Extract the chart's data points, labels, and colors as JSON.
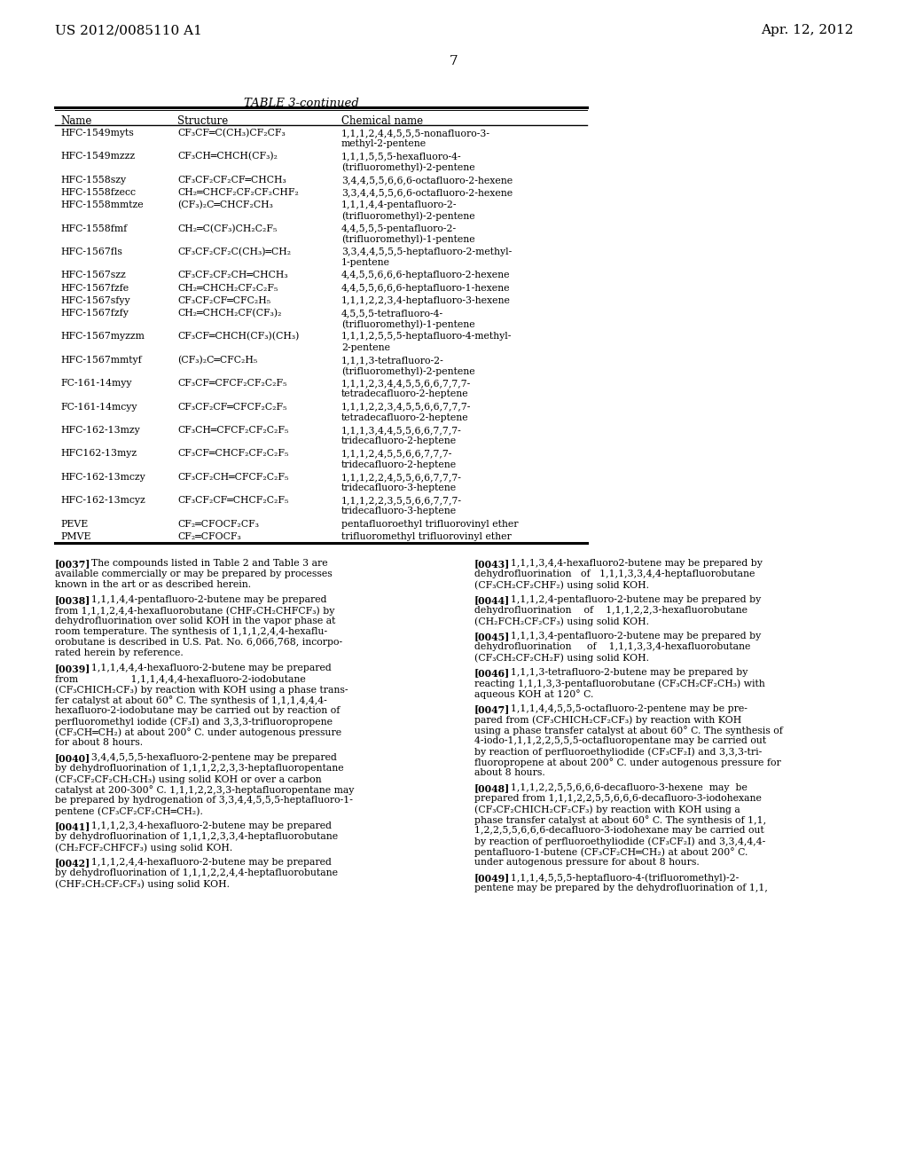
{
  "patent_number": "US 2012/0085110 A1",
  "patent_date": "Apr. 12, 2012",
  "page_number": "7",
  "table_title": "TABLE 3-continued",
  "table_headers": [
    "Name",
    "Structure",
    "Chemical name"
  ],
  "table_rows": [
    [
      "HFC-1549myts",
      "CF₃CF═C(CH₃)CF₂CF₃",
      "1,1,1,2,4,4,5,5,5-nonafluoro-3-\nmethyl-2-pentene"
    ],
    [
      "HFC-1549mzzz",
      "CF₃CH═CHCH(CF₃)₂",
      "1,1,1,5,5,5-hexafluoro-4-\n(trifluoromethyl)-2-pentene"
    ],
    [
      "HFC-1558szy",
      "CF₃CF₂CF₂CF═CHCH₃",
      "3,4,4,5,5,6,6,6-octafluoro-2-hexene"
    ],
    [
      "HFC-1558fzecc",
      "CH₂═CHCF₂CF₂CF₂CHF₂",
      "3,3,4,4,5,5,6,6-octafluoro-2-hexene"
    ],
    [
      "HFC-1558mmtze",
      "(CF₃)₂C═CHCF₂CH₃",
      "1,1,1,4,4-pentafluoro-2-\n(trifluoromethyl)-2-pentene"
    ],
    [
      "HFC-1558fmf",
      "CH₂═C(CF₃)CH₂C₂F₅",
      "4,4,5,5,5-pentafluoro-2-\n(trifluoromethyl)-1-pentene"
    ],
    [
      "HFC-1567fls",
      "CF₃CF₂CF₂C(CH₃)═CH₂",
      "3,3,4,4,5,5,5-heptafluoro-2-methyl-\n1-pentene"
    ],
    [
      "HFC-1567szz",
      "CF₃CF₂CF₂CH═CHCH₃",
      "4,4,5,5,6,6,6-heptafluoro-2-hexene"
    ],
    [
      "HFC-1567fzfe",
      "CH₂═CHCH₂CF₂C₂F₅",
      "4,4,5,5,6,6,6-heptafluoro-1-hexene"
    ],
    [
      "HFC-1567sfyy",
      "CF₃CF₂CF═CFC₂H₅",
      "1,1,1,2,2,3,4-heptafluoro-3-hexene"
    ],
    [
      "HFC-1567fzfy",
      "CH₂═CHCH₂CF(CF₃)₂",
      "4,5,5,5-tetrafluoro-4-\n(trifluoromethyl)-1-pentene"
    ],
    [
      "HFC-1567myzzm",
      "CF₃CF═CHCH(CF₃)(CH₃)",
      "1,1,1,2,5,5,5-heptafluoro-4-methyl-\n2-pentene"
    ],
    [
      "HFC-1567mmtyf",
      "(CF₃)₂C═CFC₂H₅",
      "1,1,1,3-tetrafluoro-2-\n(trifluoromethyl)-2-pentene"
    ],
    [
      "FC-161-14myy",
      "CF₃CF═CFCF₂CF₂C₂F₅",
      "1,1,1,2,3,4,4,5,5,6,6,7,7,7-\ntetradecafluoro-2-heptene"
    ],
    [
      "FC-161-14mcyy",
      "CF₃CF₂CF═CFCF₂C₂F₅",
      "1,1,1,2,2,3,4,5,5,6,6,7,7,7-\ntetradecafluoro-2-heptene"
    ],
    [
      "HFC-162-13mzy",
      "CF₃CH═CFCF₂CF₂C₂F₅",
      "1,1,1,3,4,4,5,5,6,6,7,7,7-\ntridecafluoro-2-heptene"
    ],
    [
      "HFC162-13myz",
      "CF₃CF═CHCF₂CF₂C₂F₅",
      "1,1,1,2,4,5,5,6,6,7,7,7-\ntridecafluoro-2-heptene"
    ],
    [
      "HFC-162-13mczy",
      "CF₃CF₂CH═CFCF₂C₂F₅",
      "1,1,1,2,2,4,5,5,6,6,7,7,7-\ntridecafluoro-3-heptene"
    ],
    [
      "HFC-162-13mcyz",
      "CF₃CF₂CF═CHCF₂C₂F₅",
      "1,1,1,2,2,3,5,5,6,6,7,7,7-\ntridecafluoro-3-heptene"
    ],
    [
      "PEVE",
      "CF₂═CFOCF₂CF₃",
      "pentafluoroethyl trifluorovinyl ether"
    ],
    [
      "PMVE",
      "CF₂═CFOCF₃",
      "trifluoromethyl trifluorovinyl ether"
    ]
  ],
  "paragraphs_left": [
    {
      "tag": "[0037]",
      "lines": [
        "The compounds listed in Table 2 and Table 3 are",
        "available commercially or may be prepared by processes",
        "known in the art or as described herein."
      ]
    },
    {
      "tag": "[0038]",
      "lines": [
        "1,1,1,4,4-pentafluoro-2-butene may be prepared",
        "from 1,1,1,2,4,4-hexafluorobutane (CHF₂CH₂CHFCF₃) by",
        "dehydrofluorination over solid KOH in the vapor phase at",
        "room temperature. The synthesis of 1,1,1,2,4,4-hexaflu-",
        "orobutane is described in U.S. Pat. No. 6,066,768, incorpo-",
        "rated herein by reference."
      ]
    },
    {
      "tag": "[0039]",
      "lines": [
        "1,1,1,4,4,4-hexafluoro-2-butene may be prepared",
        "from                 1,1,1,4,4,4-hexafluoro-2-iodobutane",
        "(CF₃CHICH₂CF₃) by reaction with KOH using a phase trans-",
        "fer catalyst at about 60° C. The synthesis of 1,1,1,4,4,4-",
        "hexafluoro-2-iodobutane may be carried out by reaction of",
        "perfluoromethyl iodide (CF₃I) and 3,3,3-trifluoropropene",
        "(CF₃CH═CH₂) at about 200° C. under autogenous pressure",
        "for about 8 hours."
      ]
    },
    {
      "tag": "[0040]",
      "lines": [
        "3,4,4,5,5,5-hexafluoro-2-pentene may be prepared",
        "by dehydrofluorination of 1,1,1,2,2,3,3-heptafluoropentane",
        "(CF₃CF₂CF₂CH₂CH₃) using solid KOH or over a carbon",
        "catalyst at 200-300° C. 1,1,1,2,2,3,3-heptafluoropentane may",
        "be prepared by hydrogenation of 3,3,4,4,5,5,5-heptafluoro-1-",
        "pentene (CF₃CF₂CF₂CH═CH₂)."
      ]
    },
    {
      "tag": "[0041]",
      "lines": [
        "1,1,1,2,3,4-hexafluoro-2-butene may be prepared",
        "by dehydrofluorination of 1,1,1,2,3,3,4-heptafluorobutane",
        "(CH₂FCF₂CHFCF₃) using solid KOH."
      ]
    },
    {
      "tag": "[0042]",
      "lines": [
        "1,1,1,2,4,4-hexafluoro-2-butene may be prepared",
        "by dehydrofluorination of 1,1,1,2,2,4,4-heptafluorobutane",
        "(CHF₂CH₂CF₂CF₃) using solid KOH."
      ]
    }
  ],
  "paragraphs_right": [
    {
      "tag": "[0043]",
      "lines": [
        "1,1,1,3,4,4-hexafluoro2-butene may be prepared by",
        "dehydrofluorination   of   1,1,1,3,3,4,4-heptafluorobutane",
        "(CF₃CH₂CF₂CHF₂) using solid KOH."
      ]
    },
    {
      "tag": "[0044]",
      "lines": [
        "1,1,1,2,4-pentafluoro-2-butene may be prepared by",
        "dehydrofluorination    of    1,1,1,2,2,3-hexafluorobutane",
        "(CH₂FCH₂CF₂CF₃) using solid KOH."
      ]
    },
    {
      "tag": "[0045]",
      "lines": [
        "1,1,1,3,4-pentafluoro-2-butene may be prepared by",
        "dehydrofluorination     of    1,1,1,3,3,4-hexafluorobutane",
        "(CF₃CH₂CF₂CH₂F) using solid KOH."
      ]
    },
    {
      "tag": "[0046]",
      "lines": [
        "1,1,1,3-tetrafluoro-2-butene may be prepared by",
        "reacting 1,1,1,3,3-pentafluorobutane (CF₃CH₂CF₂CH₃) with",
        "aqueous KOH at 120° C."
      ]
    },
    {
      "tag": "[0047]",
      "lines": [
        "1,1,1,4,4,5,5,5-octafluoro-2-pentene may be pre-",
        "pared from (CF₃CHICH₂CF₂CF₃) by reaction with KOH",
        "using a phase transfer catalyst at about 60° C. The synthesis of",
        "4-iodo-1,1,1,2,2,5,5,5-octafluoropentane may be carried out",
        "by reaction of perfluoroethyliodide (CF₃CF₂I) and 3,3,3-tri-",
        "fluoropropene at about 200° C. under autogenous pressure for",
        "about 8 hours."
      ]
    },
    {
      "tag": "[0048]",
      "lines": [
        "1,1,1,2,2,5,5,6,6,6-decafluoro-3-hexene  may  be",
        "prepared from 1,1,1,2,2,5,5,6,6,6-decafluoro-3-iodohexane",
        "(CF₃CF₂CHICH₂CF₂CF₃) by reaction with KOH using a",
        "phase transfer catalyst at about 60° C. The synthesis of 1,1,",
        "1,2,2,5,5,6,6,6-decafluoro-3-iodohexane may be carried out",
        "by reaction of perfluoroethyliodide (CF₃CF₂I) and 3,3,4,4,4-",
        "pentafluoro-1-butene (CF₃CF₂CH═CH₂) at about 200° C.",
        "under autogenous pressure for about 8 hours."
      ]
    },
    {
      "tag": "[0049]",
      "lines": [
        "1,1,1,4,5,5,5-heptafluoro-4-(trifluoromethyl)-2-",
        "pentene may be prepared by the dehydrofluorination of 1,1,"
      ]
    }
  ],
  "bg_color": "#ffffff"
}
